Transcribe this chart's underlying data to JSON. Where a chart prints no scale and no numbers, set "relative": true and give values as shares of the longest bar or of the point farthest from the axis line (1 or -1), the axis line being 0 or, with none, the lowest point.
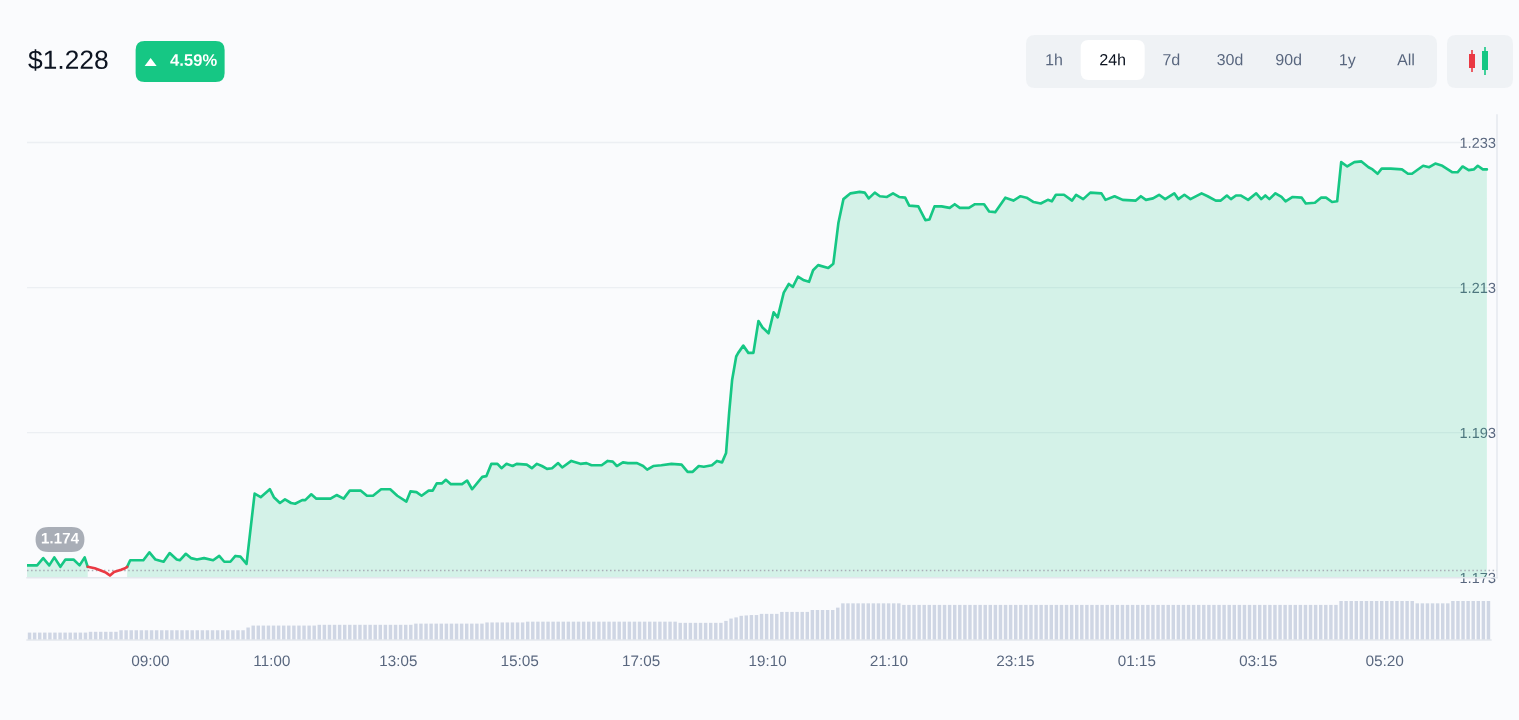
{
  "chart_data": [
    {
      "type": "area",
      "title": "$1.228",
      "annotations": [
        "4.59%",
        "1h",
        "24h",
        "7d",
        "30d",
        "90d",
        "1y",
        "All"
      ],
      "x": [
        "2000-01-01T06:58",
        "2000-01-01T07:08",
        "2000-01-01T07:14",
        "2000-01-01T07:20",
        "2000-01-01T07:25",
        "2000-01-01T07:31",
        "2000-01-01T07:36",
        "2000-01-01T07:44",
        "2000-01-01T07:50",
        "2000-01-01T07:55",
        "2000-01-01T07:58",
        "2000-01-01T08:05",
        "2000-01-01T08:11",
        "2000-01-01T08:16",
        "2000-01-01T08:20",
        "2000-01-01T08:24",
        "2000-01-01T08:31",
        "2000-01-01T08:35",
        "2000-01-01T08:37",
        "2000-01-01T08:40",
        "2000-01-01T08:53",
        "2000-01-01T08:59",
        "2000-01-01T09:05",
        "2000-01-01T09:13",
        "2000-01-01T09:19",
        "2000-01-01T09:26",
        "2000-01-01T09:29",
        "2000-01-01T09:35",
        "2000-01-01T09:40",
        "2000-01-01T09:46",
        "2000-01-01T09:53",
        "2000-01-01T10:02",
        "2000-01-01T10:08",
        "2000-01-01T10:13",
        "2000-01-01T10:19",
        "2000-01-01T10:24",
        "2000-01-01T10:29",
        "2000-01-01T10:35",
        "2000-01-01T10:43",
        "2000-01-01T10:49",
        "2000-01-01T10:58",
        "2000-01-01T11:02",
        "2000-01-01T11:08",
        "2000-01-01T11:13",
        "2000-01-01T11:19",
        "2000-01-01T11:23",
        "2000-01-01T11:30",
        "2000-01-01T11:33",
        "2000-01-01T11:39",
        "2000-01-01T11:44",
        "2000-01-01T11:58",
        "2000-01-01T12:04",
        "2000-01-01T12:11",
        "2000-01-01T12:17",
        "2000-01-01T12:28",
        "2000-01-01T12:34",
        "2000-01-01T12:40",
        "2000-01-01T12:48",
        "2000-01-01T12:57",
        "2000-01-01T13:04",
        "2000-01-01T13:13",
        "2000-01-01T13:17",
        "2000-01-01T13:23",
        "2000-01-01T13:28",
        "2000-01-01T13:35",
        "2000-01-01T13:39",
        "2000-01-01T13:43",
        "2000-01-01T13:48",
        "2000-01-01T13:52",
        "2000-01-01T13:57",
        "2000-01-01T14:08",
        "2000-01-01T14:13",
        "2000-01-01T14:18",
        "2000-01-01T14:28",
        "2000-01-01T14:32",
        "2000-01-01T14:37",
        "2000-01-01T14:43",
        "2000-01-01T14:47",
        "2000-01-01T14:52",
        "2000-01-01T14:58",
        "2000-01-01T15:02",
        "2000-01-01T15:12",
        "2000-01-01T15:17",
        "2000-01-01T15:22",
        "2000-01-01T15:27",
        "2000-01-01T15:32",
        "2000-01-01T15:37",
        "2000-01-01T15:43",
        "2000-01-01T15:47",
        "2000-01-01T15:56",
        "2000-01-01T16:05",
        "2000-01-01T16:11",
        "2000-01-01T16:16",
        "2000-01-01T16:26",
        "2000-01-01T16:32",
        "2000-01-01T16:37",
        "2000-01-01T16:41",
        "2000-01-01T16:47",
        "2000-01-01T16:52",
        "2000-01-01T17:01",
        "2000-01-01T17:07",
        "2000-01-01T17:11",
        "2000-01-01T17:17",
        "2000-01-01T17:25",
        "2000-01-01T17:35",
        "2000-01-01T17:45",
        "2000-01-01T17:51",
        "2000-01-01T17:56",
        "2000-01-01T18:02",
        "2000-01-01T18:07",
        "2000-01-01T18:15",
        "2000-01-01T18:20",
        "2000-01-01T18:25",
        "2000-01-01T18:29",
        "2000-01-01T18:32",
        "2000-01-01T18:35",
        "2000-01-01T18:39",
        "2000-01-01T18:41",
        "2000-01-01T18:46",
        "2000-01-01T18:51",
        "2000-01-01T18:56",
        "2000-01-01T19:01",
        "2000-01-01T19:05",
        "2000-01-01T19:11",
        "2000-01-01T19:16",
        "2000-01-01T19:20",
        "2000-01-01T19:26",
        "2000-01-01T19:31",
        "2000-01-01T19:35",
        "2000-01-01T19:40",
        "2000-01-01T19:46",
        "2000-01-01T19:51",
        "2000-01-01T19:55",
        "2000-01-01T20:00",
        "2000-01-01T20:10",
        "2000-01-01T20:15",
        "2000-01-01T20:20",
        "2000-01-01T20:25",
        "2000-01-01T20:32",
        "2000-01-01T20:41",
        "2000-01-01T20:46",
        "2000-01-01T20:50",
        "2000-01-01T20:56",
        "2000-01-01T21:01",
        "2000-01-01T21:08",
        "2000-01-01T21:14",
        "2000-01-01T21:20",
        "2000-01-01T21:26",
        "2000-01-01T21:30",
        "2000-01-01T21:39",
        "2000-01-01T21:46",
        "2000-01-01T21:50",
        "2000-01-01T21:55",
        "2000-01-01T22:02",
        "2000-01-01T22:10",
        "2000-01-01T22:15",
        "2000-01-01T22:20",
        "2000-01-01T22:29",
        "2000-01-01T22:35",
        "2000-01-01T22:44",
        "2000-01-01T22:49",
        "2000-01-01T22:55",
        "2000-01-01T23:05",
        "2000-01-01T23:13",
        "2000-01-01T23:20",
        "2000-01-01T23:26",
        "2000-01-01T23:33",
        "2000-01-01T23:40",
        "2000-01-01T23:47",
        "2000-01-01T23:51",
        "2000-01-01T23:55",
        "2000-01-02T00:03",
        "2000-01-02T00:11",
        "2000-01-02T00:15",
        "2000-01-02T00:22",
        "2000-01-02T00:29",
        "2000-01-02T00:40",
        "2000-01-02T00:44",
        "2000-01-02T00:53",
        "2000-01-02T01:01",
        "2000-01-02T01:14",
        "2000-01-02T01:19",
        "2000-01-02T01:24",
        "2000-01-02T01:31",
        "2000-01-02T01:37",
        "2000-01-02T01:43",
        "2000-01-02T01:52",
        "2000-01-02T01:56",
        "2000-01-02T02:02",
        "2000-01-02T02:08",
        "2000-01-02T02:19",
        "2000-01-02T02:25",
        "2000-01-02T02:33",
        "2000-01-02T02:38",
        "2000-01-02T02:44",
        "2000-01-02T02:48",
        "2000-01-02T02:53",
        "2000-01-02T02:58",
        "2000-01-02T03:05",
        "2000-01-02T03:13",
        "2000-01-02T03:18",
        "2000-01-02T03:22",
        "2000-01-02T03:26",
        "2000-01-02T03:32",
        "2000-01-02T03:38",
        "2000-01-02T03:42",
        "2000-01-02T03:49",
        "2000-01-02T03:58",
        "2000-01-02T04:02",
        "2000-01-02T04:11",
        "2000-01-02T04:17",
        "2000-01-02T04:22",
        "2000-01-02T04:28",
        "2000-01-02T04:33",
        "2000-01-02T04:37",
        "2000-01-02T04:43",
        "2000-01-02T04:50",
        "2000-01-02T04:57",
        "2000-01-02T05:04",
        "2000-01-02T05:08",
        "2000-01-02T05:13",
        "2000-01-02T05:17",
        "2000-01-02T05:26",
        "2000-01-02T05:37",
        "2000-01-02T05:43",
        "2000-01-02T05:47",
        "2000-01-02T05:58",
        "2000-01-02T06:04",
        "2000-01-02T06:10",
        "2000-01-02T06:17",
        "2000-01-02T06:27",
        "2000-01-02T06:32",
        "2000-01-02T06:37",
        "2000-01-02T06:43",
        "2000-01-02T06:48",
        "2000-01-02T06:52",
        "2000-01-02T06:57",
        "2000-01-02T07:01"
      ],
      "series": [
        {
          "type": "area",
          "color": "#16c784",
          "values": [
            1.1747,
            1.1747,
            1.1757,
            1.1747,
            1.1758,
            1.1745,
            1.1755,
            1.1755,
            1.1747,
            1.1758,
            1.1745,
            null,
            null,
            null,
            null,
            null,
            null,
            null,
            1.1745,
            1.1754,
            1.1754,
            1.1765,
            1.1755,
            1.1752,
            1.1764,
            1.1755,
            1.1754,
            1.1763,
            1.1757,
            1.1755,
            1.1757,
            1.1754,
            1.176,
            1.1752,
            1.1752,
            1.176,
            1.1759,
            1.1749,
            1.1846,
            1.1841,
            1.1852,
            1.1841,
            1.1833,
            1.1838,
            1.1833,
            1.1832,
            1.1837,
            1.1837,
            1.1845,
            1.1839,
            1.1839,
            1.1844,
            1.1839,
            1.185,
            1.185,
            1.1843,
            1.1843,
            1.1852,
            1.1852,
            1.1843,
            1.1835,
            1.1849,
            1.1848,
            1.1843,
            1.185,
            1.185,
            1.186,
            1.186,
            1.1865,
            1.1859,
            1.1859,
            1.1864,
            1.1852,
            1.1869,
            1.187,
            1.1887,
            1.1887,
            1.1881,
            1.1887,
            1.1884,
            1.1887,
            1.1886,
            1.1881,
            1.1887,
            1.1884,
            1.188,
            1.1881,
            1.1888,
            1.1882,
            1.1891,
            1.1887,
            1.1888,
            1.1885,
            1.1885,
            1.1891,
            1.189,
            1.1884,
            1.1889,
            1.1888,
            1.1888,
            1.1884,
            1.1879,
            1.1884,
            1.1885,
            1.1887,
            1.1886,
            1.1876,
            1.1876,
            1.1884,
            1.1883,
            1.1885,
            1.1891,
            1.1889,
            1.1902,
            1.1957,
            1.2003,
            1.2035,
            1.204,
            1.205,
            1.204,
            1.204,
            1.2084,
            1.2075,
            1.2067,
            1.2096,
            1.2089,
            1.2123,
            1.2135,
            1.2131,
            1.2145,
            1.214,
            1.2138,
            1.2154,
            1.2161,
            1.2157,
            1.2163,
            1.2219,
            1.2252,
            1.226,
            1.2262,
            1.2261,
            1.2253,
            1.2261,
            1.2256,
            1.2255,
            1.226,
            1.2255,
            1.2254,
            1.2243,
            1.2242,
            1.2223,
            1.2224,
            1.2242,
            1.2242,
            1.224,
            1.2245,
            1.224,
            1.224,
            1.2245,
            1.2245,
            1.2235,
            1.2234,
            1.2254,
            1.225,
            1.2256,
            1.2254,
            1.2248,
            1.2246,
            1.2251,
            1.2249,
            1.2258,
            1.2258,
            1.225,
            1.2258,
            1.2252,
            1.2261,
            1.226,
            1.2251,
            1.2256,
            1.2251,
            1.225,
            1.2256,
            1.2251,
            1.2253,
            1.2258,
            1.2252,
            1.226,
            1.2252,
            1.2258,
            1.2252,
            1.226,
            1.2256,
            1.225,
            1.225,
            1.2257,
            1.2252,
            1.2257,
            1.2257,
            1.2251,
            1.226,
            1.2252,
            1.2257,
            1.2252,
            1.226,
            1.2255,
            1.2249,
            1.2255,
            1.2254,
            1.2246,
            1.2247,
            1.2254,
            1.2254,
            1.2248,
            1.2249,
            1.2303,
            1.2297,
            1.2303,
            1.2304,
            1.2296,
            1.2293,
            1.2287,
            1.2294,
            1.2294,
            1.2293,
            1.2287,
            1.2287,
            1.2298,
            1.2296,
            1.2301,
            1.2298,
            1.2289,
            1.2289,
            1.2297,
            1.2292,
            1.2293,
            1.2298,
            1.2293,
            1.2293
          ]
        },
        {
          "type": "line",
          "color": "#ea3943",
          "x": [
            "2000-01-01T07:58",
            "2000-01-01T08:05",
            "2000-01-01T08:11",
            "2000-01-01T08:16",
            "2000-01-01T08:20",
            "2000-01-01T08:24",
            "2000-01-01T08:31",
            "2000-01-01T08:35",
            "2000-01-01T08:37"
          ],
          "values": [
            1.1745,
            1.1743,
            1.174,
            1.1737,
            1.1733,
            1.1738,
            1.1741,
            1.1743,
            1.1745
          ]
        }
      ],
      "xlim": [
        "2000-01-01T06:58",
        "2000-01-02T07:11"
      ],
      "xticks": [
        {
          "value": "2000-01-01T09:00",
          "label": "09:00"
        },
        {
          "value": "2000-01-01T11:00",
          "label": "11:00"
        },
        {
          "value": "2000-01-01T13:05",
          "label": "13:05"
        },
        {
          "value": "2000-01-01T15:05",
          "label": "15:05"
        },
        {
          "value": "2000-01-01T17:05",
          "label": "17:05"
        },
        {
          "value": "2000-01-01T19:10",
          "label": "19:10"
        },
        {
          "value": "2000-01-01T21:10",
          "label": "21:10"
        },
        {
          "value": "2000-01-01T23:15",
          "label": "23:15"
        },
        {
          "value": "2000-01-02T01:15",
          "label": "01:15"
        },
        {
          "value": "2000-01-02T03:15",
          "label": "03:15"
        },
        {
          "value": "2000-01-02T05:20",
          "label": "05:20"
        }
      ],
      "ylim": [
        1.173,
        1.2368
      ],
      "yticks": [
        1.173,
        1.193,
        1.213,
        1.233
      ],
      "grid": "y",
      "ref_lines": [
        {
          "axis": "y",
          "value": 1.174,
          "label": "1.174",
          "line_style": "dotted",
          "color": "#a9aeb7"
        }
      ]
    },
    {
      "type": "bar",
      "relative": true,
      "color": "#cfd6e4",
      "categories": [
        null,
        null,
        null,
        null,
        null,
        null,
        null,
        null,
        null,
        null,
        null,
        null,
        null,
        null,
        null,
        null,
        null,
        null,
        null,
        null,
        null,
        null,
        null,
        null,
        null,
        null,
        null,
        null,
        null,
        null,
        null,
        null,
        null,
        null,
        null,
        null,
        null,
        null,
        null,
        null,
        null,
        null,
        null,
        null,
        null,
        null,
        null,
        null,
        null,
        null,
        null,
        null,
        null,
        null,
        null,
        null,
        null,
        null,
        null,
        null,
        null,
        null,
        null,
        null,
        null,
        null,
        null,
        null,
        null,
        null,
        null,
        null,
        null,
        null,
        null,
        null,
        null,
        null,
        null,
        null,
        null,
        null,
        null,
        null,
        null,
        null,
        null,
        null,
        null,
        null,
        null,
        null,
        null,
        null,
        null,
        null,
        null,
        null,
        null,
        null,
        null,
        null,
        null,
        null,
        null,
        null,
        null,
        null,
        null,
        null,
        null,
        null,
        null,
        null,
        null,
        null,
        null,
        null,
        null,
        null,
        null,
        null,
        null,
        null,
        null,
        null,
        null,
        null,
        null,
        null,
        null,
        null,
        null,
        null,
        null,
        null,
        null,
        null,
        null,
        null,
        null,
        null,
        null,
        null,
        null,
        null,
        null,
        null,
        null,
        null,
        null,
        null,
        null,
        null,
        null,
        null,
        null,
        null,
        null,
        null,
        null,
        null,
        null,
        null,
        null,
        null,
        null,
        null,
        null,
        null,
        null,
        null,
        null,
        null,
        null,
        null,
        null,
        null,
        null,
        null,
        null,
        null,
        null,
        null,
        null,
        null,
        null,
        null,
        null,
        null,
        null,
        null,
        null,
        null,
        null,
        null,
        null,
        null,
        null,
        null,
        null,
        null,
        null,
        null,
        null,
        null,
        null,
        null,
        null,
        null,
        null,
        null,
        null,
        null,
        null,
        null,
        null,
        null,
        null,
        null,
        null,
        null,
        null,
        null,
        null,
        null,
        null,
        null,
        null,
        null,
        null,
        null,
        null,
        null,
        null,
        null,
        null,
        null,
        null,
        null,
        null,
        null,
        null,
        null,
        null,
        null,
        null,
        null,
        null,
        null,
        null,
        null,
        null,
        null,
        null,
        null,
        null,
        null,
        null,
        null,
        null,
        null,
        null,
        null,
        null,
        null,
        null,
        null,
        null,
        null,
        null,
        null,
        null,
        null,
        null,
        null,
        null,
        null,
        null,
        null,
        null,
        null,
        null,
        null,
        null,
        null,
        null,
        null
      ],
      "values": [
        0.19,
        0.19,
        0.19,
        0.19,
        0.19,
        0.19,
        0.19,
        0.19,
        0.19,
        0.19,
        0.19,
        0.19,
        0.21,
        0.21,
        0.21,
        0.21,
        0.21,
        0.21,
        0.25,
        0.25,
        0.25,
        0.25,
        0.25,
        0.25,
        0.25,
        0.25,
        0.25,
        0.25,
        0.25,
        0.25,
        0.25,
        0.25,
        0.25,
        0.25,
        0.25,
        0.25,
        0.25,
        0.25,
        0.25,
        0.25,
        0.25,
        0.25,
        0.25,
        0.32,
        0.37,
        0.37,
        0.37,
        0.37,
        0.37,
        0.37,
        0.37,
        0.37,
        0.37,
        0.37,
        0.37,
        0.37,
        0.37,
        0.39,
        0.39,
        0.39,
        0.39,
        0.39,
        0.39,
        0.39,
        0.39,
        0.39,
        0.39,
        0.39,
        0.39,
        0.39,
        0.39,
        0.39,
        0.39,
        0.39,
        0.39,
        0.39,
        0.42,
        0.42,
        0.42,
        0.42,
        0.42,
        0.42,
        0.42,
        0.42,
        0.42,
        0.42,
        0.42,
        0.42,
        0.42,
        0.42,
        0.45,
        0.45,
        0.45,
        0.45,
        0.45,
        0.45,
        0.45,
        0.45,
        0.47,
        0.47,
        0.47,
        0.47,
        0.47,
        0.47,
        0.47,
        0.47,
        0.47,
        0.47,
        0.47,
        0.47,
        0.47,
        0.47,
        0.47,
        0.47,
        0.47,
        0.47,
        0.47,
        0.47,
        0.47,
        0.47,
        0.47,
        0.47,
        0.47,
        0.47,
        0.47,
        0.47,
        0.47,
        0.47,
        0.44,
        0.44,
        0.44,
        0.44,
        0.44,
        0.44,
        0.44,
        0.44,
        0.44,
        0.49,
        0.55,
        0.58,
        0.62,
        0.63,
        0.64,
        0.64,
        0.67,
        0.67,
        0.67,
        0.67,
        0.72,
        0.72,
        0.72,
        0.72,
        0.72,
        0.72,
        0.77,
        0.77,
        0.77,
        0.77,
        0.77,
        0.83,
        0.94,
        0.94,
        0.94,
        0.94,
        0.94,
        0.94,
        0.94,
        0.94,
        0.94,
        0.94,
        0.94,
        0.94,
        0.9,
        0.9,
        0.9,
        0.9,
        0.9,
        0.9,
        0.9,
        0.9,
        0.9,
        0.9,
        0.9,
        0.9,
        0.9,
        0.9,
        0.9,
        0.9,
        0.9,
        0.9,
        0.9,
        0.9,
        0.9,
        0.9,
        0.9,
        0.9,
        0.9,
        0.9,
        0.9,
        0.9,
        0.9,
        0.9,
        0.9,
        0.9,
        0.9,
        0.9,
        0.9,
        0.9,
        0.9,
        0.9,
        0.9,
        0.9,
        0.9,
        0.9,
        0.9,
        0.9,
        0.9,
        0.9,
        0.9,
        0.9,
        0.9,
        0.9,
        0.9,
        0.9,
        0.9,
        0.9,
        0.9,
        0.9,
        0.9,
        0.9,
        0.9,
        0.9,
        0.9,
        0.9,
        0.9,
        0.9,
        0.9,
        0.9,
        0.9,
        0.9,
        0.9,
        0.9,
        0.9,
        0.9,
        0.9,
        0.9,
        0.9,
        0.9,
        0.9,
        0.9,
        0.9,
        0.9,
        0.9,
        0.9,
        0.9,
        0.9,
        0.9,
        0.9,
        1,
        1,
        1,
        1,
        1,
        1,
        1,
        1,
        1,
        1,
        1,
        1,
        1,
        1,
        1,
        0.94,
        0.94,
        0.94,
        0.94,
        0.94,
        0.94,
        0.94,
        1,
        1,
        1,
        1,
        1,
        1,
        1,
        1
      ]
    }
  ]
}
